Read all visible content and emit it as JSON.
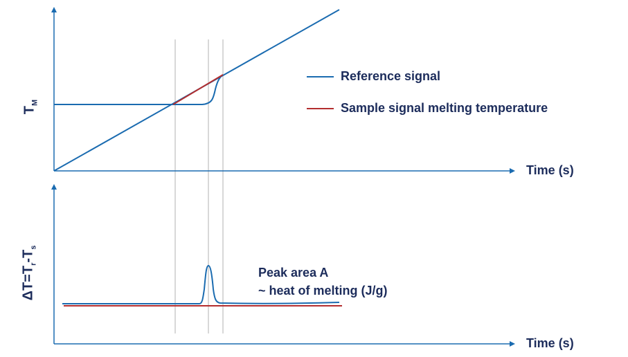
{
  "colors": {
    "axis": "#1a6bb0",
    "reference": "#1a6bb0",
    "sample": "#b32d2e",
    "guide": "#cccccc",
    "text": "#1c2c5b"
  },
  "top_panel": {
    "y_axis_label": {
      "main": "T",
      "sub": "M"
    },
    "x_axis_label": "Time (s)"
  },
  "bottom_panel": {
    "y_axis_label": {
      "delta": "ΔT=T",
      "r": "r",
      "dash": "-T",
      "s": "s"
    },
    "x_axis_label": "Time (s)",
    "annotation": {
      "line1": "Peak area A",
      "line2": "~ heat of melting (J/g)"
    }
  },
  "legend": {
    "items": [
      {
        "label": "Reference signal",
        "color": "#1a6bb0"
      },
      {
        "label": "Sample signal melting temperature",
        "color": "#b32d2e"
      }
    ]
  }
}
